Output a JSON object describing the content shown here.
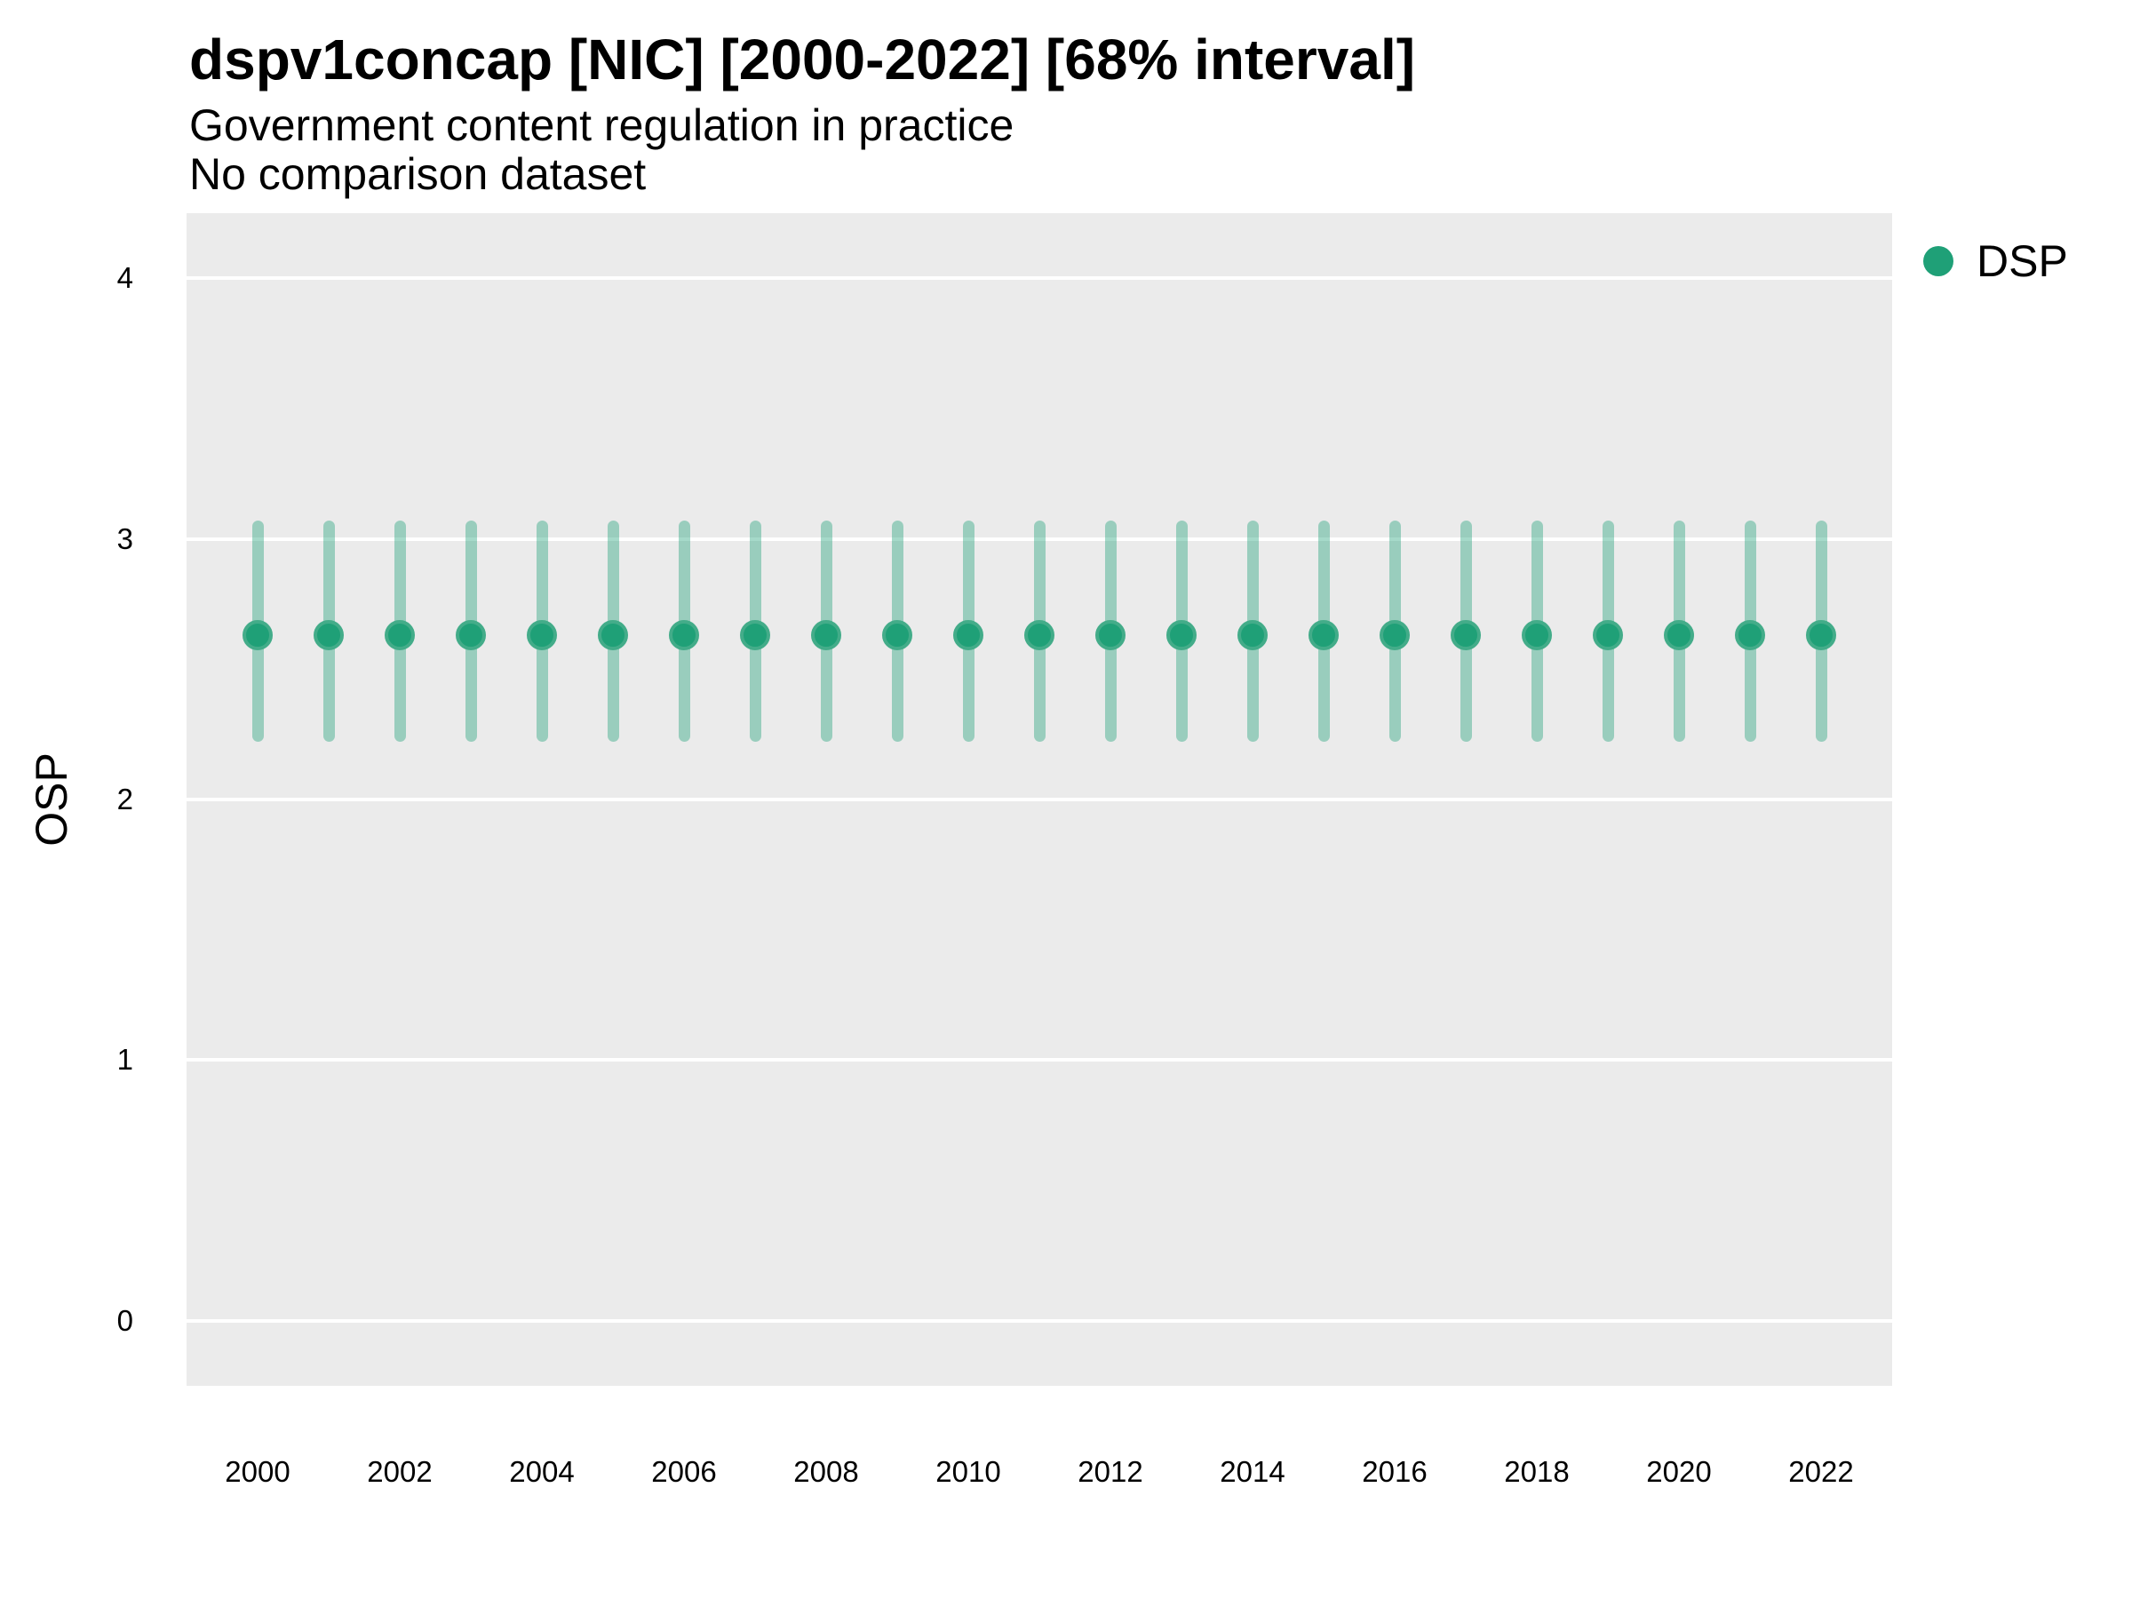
{
  "header": {
    "title": "dspv1concap [NIC] [2000-2022] [68% interval]",
    "subtitle": "Government content regulation in practice",
    "note": "No comparison dataset"
  },
  "axes": {
    "y_title": "OSP",
    "y_tick_labels": [
      "0",
      "1",
      "2",
      "3",
      "4"
    ],
    "x_tick_labels": [
      "2000",
      "2002",
      "2004",
      "2006",
      "2008",
      "2010",
      "2012",
      "2014",
      "2016",
      "2018",
      "2020",
      "2022"
    ]
  },
  "legend": {
    "items": [
      {
        "label": "DSP",
        "color": "#1FA077"
      }
    ]
  },
  "colors": {
    "point_fill": "#1FA077",
    "point_ring": "#43AC89",
    "interval_bar": "rgba(31, 160, 119, 0.40)",
    "panel_background": "#EBEBEB",
    "gridline": "#FFFFFF",
    "text": "#000000"
  },
  "chart_data": {
    "type": "scatter",
    "subtype": "pointrange",
    "title": "dspv1concap [NIC] [2000-2022] [68% interval]",
    "subtitle": "Government content regulation in practice",
    "note": "No comparison dataset",
    "interval": "68%",
    "xlabel": "",
    "ylabel": "OSP",
    "x": [
      2000,
      2001,
      2002,
      2003,
      2004,
      2005,
      2006,
      2007,
      2008,
      2009,
      2010,
      2011,
      2012,
      2013,
      2014,
      2015,
      2016,
      2017,
      2018,
      2019,
      2020,
      2021,
      2022
    ],
    "series": [
      {
        "name": "DSP",
        "estimates": [
          2.63,
          2.63,
          2.63,
          2.63,
          2.63,
          2.63,
          2.63,
          2.63,
          2.63,
          2.63,
          2.63,
          2.63,
          2.63,
          2.63,
          2.63,
          2.63,
          2.63,
          2.63,
          2.63,
          2.63,
          2.63,
          2.63,
          2.63
        ],
        "lower": [
          2.22,
          2.22,
          2.22,
          2.22,
          2.22,
          2.22,
          2.22,
          2.22,
          2.22,
          2.22,
          2.22,
          2.22,
          2.22,
          2.22,
          2.22,
          2.22,
          2.22,
          2.22,
          2.22,
          2.22,
          2.22,
          2.22,
          2.22
        ],
        "upper": [
          3.07,
          3.07,
          3.07,
          3.07,
          3.07,
          3.07,
          3.07,
          3.07,
          3.07,
          3.07,
          3.07,
          3.07,
          3.07,
          3.07,
          3.07,
          3.07,
          3.07,
          3.07,
          3.07,
          3.07,
          3.07,
          3.07,
          3.07
        ]
      }
    ],
    "ylim": [
      -0.25,
      4.25
    ],
    "xlim": [
      1999,
      2023
    ],
    "yticks": [
      0,
      1,
      2,
      3,
      4
    ],
    "xticks": [
      2000,
      2002,
      2004,
      2006,
      2008,
      2010,
      2012,
      2014,
      2016,
      2018,
      2020,
      2022
    ],
    "grid": "major-horizontal-white-on-gray",
    "legend_position": "right"
  }
}
